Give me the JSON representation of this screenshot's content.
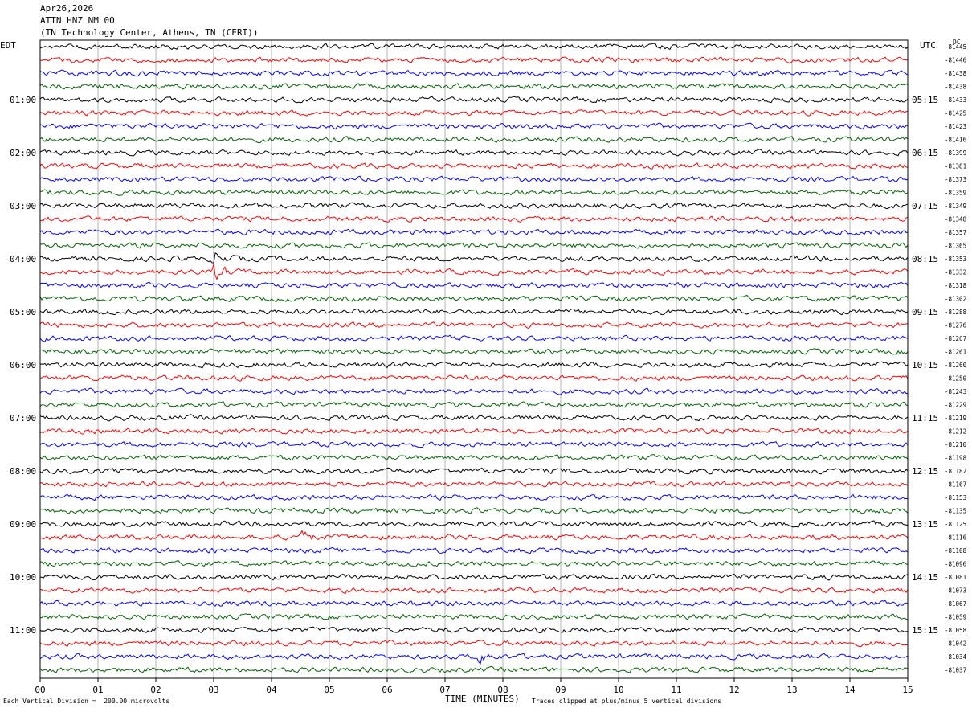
{
  "header": {
    "date": "Apr26,2026",
    "station": "ATTN HNZ NM 00",
    "location": "(TN Technology Center, Athens, TN (CERI))"
  },
  "axes": {
    "left_tz": "EDT",
    "right_tz": "UTC",
    "dc_label": "DC",
    "xlabel": "TIME (MINUTES)"
  },
  "footer": {
    "scale_note": "Each Vertical Division =  200.00 microvolts",
    "clip_note": "Traces clipped at plus/minus 5 vertical divisions"
  },
  "colors": {
    "trace_cycle": [
      "#000000",
      "#ff0000",
      "#0000ff",
      "#006400"
    ],
    "grid": "#808080",
    "background": "#ffffff"
  },
  "chart_data": {
    "type": "line",
    "title": "ATTN HNZ NM 00",
    "xlabel": "TIME (MINUTES)",
    "x_ticks": [
      "00",
      "01",
      "02",
      "03",
      "04",
      "05",
      "06",
      "07",
      "08",
      "09",
      "10",
      "11",
      "12",
      "13",
      "14",
      "15"
    ],
    "xlim": [
      0,
      15
    ],
    "rows_per_hour": 4,
    "minutes_per_row": 15,
    "left_hour_labels": [
      "01:00",
      "02:00",
      "03:00",
      "04:00",
      "05:00",
      "06:00",
      "07:00",
      "08:00",
      "09:00",
      "10:00",
      "11:00"
    ],
    "right_hour_labels": [
      "05:15",
      "06:15",
      "07:15",
      "08:15",
      "09:15",
      "10:15",
      "11:15",
      "12:15",
      "13:15",
      "14:15",
      "15:15"
    ],
    "dc_offsets": [
      -81445,
      -81446,
      -81438,
      -81438,
      -81433,
      -81425,
      -81423,
      -81416,
      -81399,
      -81381,
      -81373,
      -81359,
      -81349,
      -81348,
      -81357,
      -81365,
      -81353,
      -81332,
      -81318,
      -81302,
      -81288,
      -81276,
      -81267,
      -81261,
      -81260,
      -81250,
      -81243,
      -81229,
      -81219,
      -81212,
      -81210,
      -81198,
      -81182,
      -81167,
      -81153,
      -81135,
      -81125,
      -81116,
      -81108,
      -81096,
      -81081,
      -81073,
      -81067,
      -81059,
      -81058,
      -81042,
      -81034,
      -81037
    ],
    "events": [
      {
        "row": 16,
        "minute": 3.0,
        "amplitude": 3.2
      },
      {
        "row": 17,
        "minute": 3.05,
        "amplitude": 2.6
      },
      {
        "row": 37,
        "minute": 4.5,
        "amplitude": 2.2
      },
      {
        "row": 46,
        "minute": 7.6,
        "amplitude": 2.0
      }
    ]
  }
}
